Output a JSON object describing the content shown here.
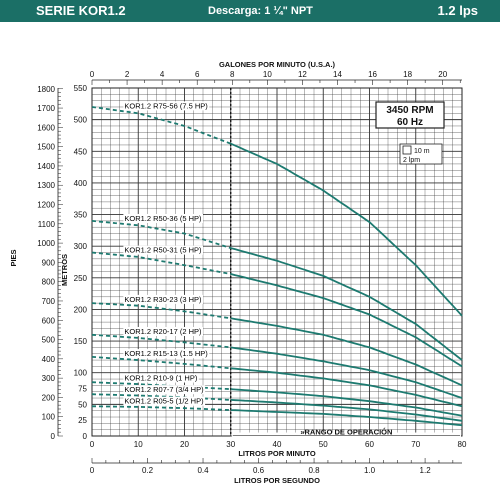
{
  "header": {
    "series": "SERIE KOR1.2",
    "discharge": "Descarga: 1 ¼\" NPT",
    "flow": "1.2 lps"
  },
  "colors": {
    "accent": "#1b6f66",
    "curve": "#1d7a70",
    "grid": "#222222"
  },
  "chart_data": {
    "type": "line",
    "axes": {
      "top": {
        "label": "GALONES POR MINUTO (U.S.A.)",
        "range": [
          0,
          21.1
        ],
        "ticks": [
          0,
          2,
          4,
          6,
          8,
          10,
          12,
          14,
          16,
          18,
          20
        ]
      },
      "bottom": {
        "label": "LITROS POR MINUTO",
        "range": [
          0,
          80
        ],
        "ticks": [
          0,
          10,
          20,
          30,
          40,
          50,
          60,
          70,
          80
        ]
      },
      "bottom2": {
        "label": "LITROS POR SEGUNDO",
        "range": [
          0,
          1.333
        ],
        "ticks": [
          0,
          0.2,
          0.4,
          0.6,
          0.8,
          1.0,
          1.2
        ],
        "tick_labels": [
          "0",
          "0.2",
          "0.4",
          "0.6",
          "0.8",
          "1.0",
          "1.2"
        ]
      },
      "left_feet": {
        "label": "PIES",
        "range": [
          0,
          1804
        ],
        "ticks": [
          0,
          100,
          200,
          300,
          400,
          500,
          600,
          700,
          800,
          900,
          1000,
          1100,
          1200,
          1300,
          1400,
          1500,
          1600,
          1700,
          1800
        ]
      },
      "left_meters": {
        "label": "METROS",
        "range": [
          0,
          550
        ],
        "ticks": [
          0,
          25,
          50,
          75,
          100,
          150,
          200,
          250,
          300,
          350,
          400,
          450,
          500,
          550
        ]
      }
    },
    "operating_range": {
      "label": "»RANGO DE OPERACIÓN",
      "x": [
        30,
        80
      ]
    },
    "info": {
      "rpm": "3450 RPM",
      "hz": "60 Hz",
      "scale_y": "10 m",
      "scale_x": "2 lpm"
    },
    "series": [
      {
        "name": "KOR1.2 R75-56 (7.5 HP)",
        "x": [
          0,
          10,
          20,
          30,
          40,
          50,
          60,
          70,
          80
        ],
        "y": [
          520,
          510,
          490,
          462,
          430,
          388,
          338,
          270,
          190
        ]
      },
      {
        "name": "KOR1.2 R50-36 (5 HP)",
        "x": [
          0,
          10,
          20,
          30,
          40,
          50,
          60,
          70,
          80
        ],
        "y": [
          340,
          333,
          320,
          297,
          277,
          253,
          220,
          177,
          120
        ]
      },
      {
        "name": "KOR1.2 R50-31 (5 HP)",
        "x": [
          0,
          10,
          20,
          30,
          40,
          50,
          60,
          70,
          80
        ],
        "y": [
          290,
          283,
          270,
          256,
          238,
          218,
          192,
          156,
          110
        ]
      },
      {
        "name": "KOR1.2 R30-23 (3 HP)",
        "x": [
          0,
          10,
          20,
          30,
          40,
          50,
          60,
          70,
          80
        ],
        "y": [
          210,
          206,
          197,
          186,
          174,
          160,
          140,
          113,
          80
        ]
      },
      {
        "name": "KOR1.2 R20-17 (2 HP)",
        "x": [
          0,
          10,
          20,
          30,
          40,
          50,
          60,
          70,
          80
        ],
        "y": [
          160,
          155,
          148,
          140,
          130,
          118,
          104,
          85,
          60
        ]
      },
      {
        "name": "KOR1.2 R15-13 (1.5 HP)",
        "x": [
          0,
          10,
          20,
          30,
          40,
          50,
          60,
          70,
          80
        ],
        "y": [
          125,
          120,
          114,
          107,
          100,
          91,
          80,
          65,
          47
        ]
      },
      {
        "name": "KOR1.2 R10-9 (1 HP)",
        "x": [
          0,
          10,
          20,
          30,
          40,
          50,
          60,
          70,
          80
        ],
        "y": [
          85,
          82,
          78,
          74,
          69,
          63,
          55,
          45,
          32
        ]
      },
      {
        "name": "KOR1.2 R07-7 (3/4 HP)",
        "x": [
          0,
          10,
          20,
          30,
          40,
          50,
          60,
          70,
          80
        ],
        "y": [
          66,
          64,
          61,
          57,
          53,
          48,
          42,
          34,
          24
        ]
      },
      {
        "name": "KOR1.2 R05-5 (1/2 HP)",
        "x": [
          0,
          10,
          20,
          30,
          40,
          50,
          60,
          70,
          80
        ],
        "y": [
          47,
          46,
          44,
          41,
          38,
          35,
          30,
          24,
          17
        ]
      }
    ],
    "grid": true
  }
}
